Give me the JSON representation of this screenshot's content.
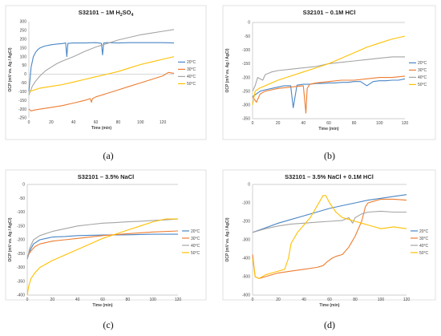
{
  "figure": {
    "panels": [
      {
        "caption": "(a)",
        "chart_data": {
          "type": "line",
          "title": "S32101 – 1M H",
          "title_sub1": "2",
          "title_mid": "SO",
          "title_sub2": "4",
          "xlabel": "Time (min)",
          "ylabel": "OCP (mV vs. Ag / AgCl)",
          "xlim": [
            0,
            130
          ],
          "ylim": [
            -250,
            300
          ],
          "xticks": [
            "0",
            "20",
            "40",
            "60",
            "80",
            "100",
            "120"
          ],
          "yticks": [
            "-250",
            "-200",
            "-150",
            "-100",
            "-50",
            "0",
            "50",
            "100",
            "150",
            "200",
            "250",
            "300"
          ],
          "legend_position": "right",
          "series": [
            {
              "name": "20°C",
              "color": "#4a86c5",
              "x": [
                0,
                2,
                4,
                6,
                8,
                10,
                14,
                20,
                25,
                30,
                33,
                34,
                35,
                40,
                50,
                60,
                65,
                66,
                67,
                70,
                80,
                90,
                100,
                110,
                120,
                130
              ],
              "y": [
                -100,
                40,
                100,
                125,
                140,
                150,
                160,
                168,
                172,
                175,
                178,
                100,
                176,
                178,
                178,
                180,
                176,
                110,
                178,
                180,
                178,
                180,
                180,
                180,
                180,
                178
              ]
            },
            {
              "name": "30°C",
              "color": "#ed7d31",
              "x": [
                0,
                2,
                5,
                10,
                20,
                30,
                40,
                50,
                55,
                56,
                57,
                60,
                70,
                80,
                90,
                100,
                110,
                120,
                125,
                130
              ],
              "y": [
                -200,
                -210,
                -205,
                -200,
                -190,
                -180,
                -165,
                -150,
                -140,
                -160,
                -140,
                -130,
                -110,
                -90,
                -70,
                -50,
                -30,
                -10,
                10,
                5
              ]
            },
            {
              "name": "40°C",
              "color": "#a5a5a5",
              "x": [
                0,
                3,
                6,
                10,
                15,
                20,
                25,
                30,
                40,
                50,
                60,
                70,
                80,
                90,
                100,
                110,
                120,
                130
              ],
              "y": [
                -120,
                -70,
                -40,
                -10,
                20,
                40,
                60,
                75,
                100,
                130,
                155,
                175,
                195,
                210,
                225,
                235,
                245,
                255
              ]
            },
            {
              "name": "50°C",
              "color": "#ffc000",
              "x": [
                0,
                5,
                10,
                20,
                30,
                40,
                50,
                60,
                70,
                80,
                90,
                100,
                110,
                120,
                130
              ],
              "y": [
                -100,
                -90,
                -80,
                -70,
                -60,
                -45,
                -30,
                -15,
                0,
                15,
                35,
                55,
                70,
                85,
                100
              ]
            }
          ]
        }
      },
      {
        "caption": "(b)",
        "chart_data": {
          "type": "line",
          "title": "S32101 – 0.1M HCl",
          "xlabel": "Time (min)",
          "ylabel": "OCP (mV vs. Ag / AgCl)",
          "xlim": [
            0,
            120
          ],
          "ylim": [
            -350,
            0
          ],
          "xticks": [
            "0",
            "20",
            "40",
            "60",
            "80",
            "100",
            "120"
          ],
          "yticks": [
            "-350",
            "-300",
            "-250",
            "-200",
            "-150",
            "-100",
            "-50",
            "0"
          ],
          "legend_position": "right",
          "series": [
            {
              "name": "20°C",
              "color": "#4a86c5",
              "x": [
                0,
                3,
                6,
                10,
                15,
                20,
                25,
                30,
                32,
                35,
                40,
                45,
                50,
                55,
                60,
                65,
                70,
                75,
                80,
                85,
                90,
                95,
                100,
                105,
                110,
                115,
                120
              ],
              "y": [
                -270,
                -260,
                -250,
                -245,
                -240,
                -235,
                -230,
                -230,
                -310,
                -228,
                -225,
                -225,
                -222,
                -222,
                -220,
                -220,
                -218,
                -218,
                -215,
                -215,
                -230,
                -215,
                -212,
                -212,
                -210,
                -210,
                -205
              ]
            },
            {
              "name": "30°C",
              "color": "#ed7d31",
              "x": [
                0,
                3,
                6,
                10,
                15,
                20,
                30,
                40,
                42,
                43,
                45,
                50,
                60,
                70,
                80,
                90,
                100,
                110,
                120
              ],
              "y": [
                -270,
                -290,
                -260,
                -250,
                -245,
                -240,
                -235,
                -230,
                -330,
                -240,
                -225,
                -220,
                -215,
                -210,
                -210,
                -205,
                -200,
                -200,
                -195
              ]
            },
            {
              "name": "40°C",
              "color": "#a5a5a5",
              "x": [
                0,
                2,
                4,
                8,
                10,
                15,
                20,
                30,
                40,
                50,
                60,
                70,
                80,
                90,
                100,
                110,
                120
              ],
              "y": [
                -250,
                -230,
                -200,
                -210,
                -190,
                -180,
                -175,
                -170,
                -165,
                -160,
                -150,
                -145,
                -140,
                -135,
                -130,
                -125,
                -125
              ]
            },
            {
              "name": "50°C",
              "color": "#ffc000",
              "x": [
                0,
                2,
                5,
                10,
                20,
                30,
                40,
                50,
                60,
                70,
                80,
                90,
                100,
                110,
                120
              ],
              "y": [
                -300,
                -250,
                -240,
                -230,
                -210,
                -195,
                -180,
                -165,
                -150,
                -130,
                -110,
                -90,
                -75,
                -60,
                -50
              ]
            }
          ]
        }
      },
      {
        "caption": "(c)",
        "chart_data": {
          "type": "line",
          "title": "S32101 – 3.5% NaCl",
          "xlabel": "Time (min)",
          "ylabel": "OCP (mV vs. Ag / AgCl)",
          "xlim": [
            0,
            120
          ],
          "ylim": [
            -400,
            0
          ],
          "xticks": [
            "0",
            "20",
            "40",
            "60",
            "80",
            "100",
            "120"
          ],
          "yticks": [
            "-400",
            "-350",
            "-300",
            "-250",
            "-200",
            "-150",
            "-100",
            "-50",
            "0"
          ],
          "legend_position": "right",
          "series": [
            {
              "name": "20°C",
              "color": "#4a86c5",
              "x": [
                0,
                2,
                5,
                10,
                15,
                20,
                30,
                40,
                60,
                80,
                100,
                120
              ],
              "y": [
                -270,
                -240,
                -215,
                -200,
                -195,
                -190,
                -188,
                -185,
                -183,
                -182,
                -180,
                -180
              ]
            },
            {
              "name": "30°C",
              "color": "#ed7d31",
              "x": [
                0,
                3,
                6,
                10,
                20,
                30,
                40,
                60,
                80,
                100,
                120
              ],
              "y": [
                -260,
                -240,
                -225,
                -215,
                -205,
                -200,
                -195,
                -185,
                -178,
                -172,
                -168
              ]
            },
            {
              "name": "40°C",
              "color": "#a5a5a5",
              "x": [
                0,
                2,
                5,
                10,
                20,
                30,
                40,
                50,
                60,
                70,
                80,
                90,
                100,
                110,
                120
              ],
              "y": [
                -270,
                -230,
                -200,
                -185,
                -170,
                -160,
                -150,
                -145,
                -140,
                -138,
                -135,
                -133,
                -130,
                -128,
                -125
              ]
            },
            {
              "name": "50°C",
              "color": "#ffc000",
              "x": [
                0,
                1,
                3,
                6,
                10,
                20,
                30,
                40,
                50,
                60,
                70,
                80,
                90,
                100,
                110,
                120
              ],
              "y": [
                -400,
                -370,
                -340,
                -320,
                -300,
                -275,
                -255,
                -235,
                -215,
                -195,
                -180,
                -165,
                -150,
                -135,
                -125,
                -125
              ]
            }
          ]
        }
      },
      {
        "caption": "(d)",
        "chart_data": {
          "type": "line",
          "title": "S32101 – 3.5% NaCl + 0.1M HCl",
          "xlabel": "Time (min)",
          "ylabel": "OCP (mV vs. Ag / AgCl)",
          "xlim": [
            0,
            120
          ],
          "ylim": [
            -600,
            0
          ],
          "xticks": [
            "0",
            "20",
            "40",
            "60",
            "80",
            "100",
            "120"
          ],
          "yticks": [
            "-600",
            "-500",
            "-400",
            "-300",
            "-200",
            "-100",
            "0"
          ],
          "legend_position": "right",
          "series": [
            {
              "name": "20°C",
              "color": "#4a86c5",
              "x": [
                0,
                10,
                20,
                30,
                40,
                50,
                60,
                70,
                80,
                90,
                100,
                110,
                120
              ],
              "y": [
                -260,
                -235,
                -210,
                -190,
                -170,
                -150,
                -130,
                -115,
                -100,
                -85,
                -75,
                -65,
                -55
              ]
            },
            {
              "name": "30°C",
              "color": "#ed7d31",
              "x": [
                0,
                2,
                5,
                10,
                20,
                30,
                40,
                50,
                55,
                58,
                62,
                65,
                70,
                75,
                80,
                85,
                88,
                90,
                95,
                100,
                110,
                120
              ],
              "y": [
                -380,
                -500,
                -510,
                -500,
                -480,
                -470,
                -460,
                -450,
                -440,
                -420,
                -400,
                -390,
                -380,
                -340,
                -280,
                -200,
                -120,
                -100,
                -90,
                -80,
                -80,
                -85
              ]
            },
            {
              "name": "40°C",
              "color": "#a5a5a5",
              "x": [
                0,
                10,
                20,
                30,
                40,
                50,
                60,
                70,
                75,
                78,
                80,
                85,
                90,
                100,
                110,
                120
              ],
              "y": [
                -260,
                -240,
                -225,
                -215,
                -210,
                -205,
                -200,
                -195,
                -180,
                -210,
                -180,
                -160,
                -150,
                -145,
                -150,
                -150
              ]
            },
            {
              "name": "50°C",
              "color": "#ffc000",
              "x": [
                0,
                2,
                5,
                10,
                20,
                25,
                28,
                30,
                35,
                40,
                45,
                50,
                55,
                57,
                60,
                65,
                70,
                75,
                80,
                85,
                90,
                95,
                100,
                110,
                120
              ],
              "y": [
                -400,
                -500,
                -510,
                -490,
                -470,
                -460,
                -400,
                -320,
                -260,
                -220,
                -180,
                -120,
                -60,
                -60,
                -100,
                -150,
                -180,
                -190,
                -200,
                -210,
                -220,
                -230,
                -240,
                -230,
                -240
              ]
            }
          ]
        }
      }
    ]
  }
}
